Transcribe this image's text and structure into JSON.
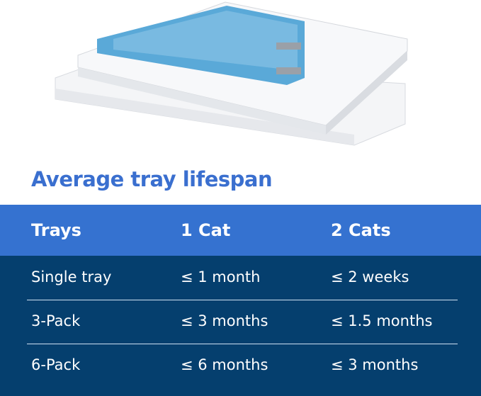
{
  "image": {
    "description_icon": "litter-tray-product-photo"
  },
  "title": "Average tray lifespan",
  "table": {
    "headers": [
      "Trays",
      "1 Cat",
      "2 Cats"
    ],
    "rows": [
      [
        "Single tray",
        "≤ 1 month",
        "≤ 2 weeks"
      ],
      [
        "3-Pack",
        "≤ 3 months",
        "≤ 1.5 months"
      ],
      [
        "6-Pack",
        "≤ 6 months",
        "≤ 3 months"
      ]
    ]
  },
  "colors": {
    "title": "#3a6fcf",
    "header_bg": "#3572d0",
    "body_bg": "#053f6e"
  }
}
